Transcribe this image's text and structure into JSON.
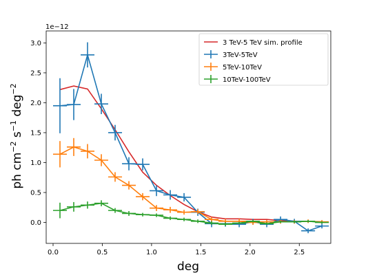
{
  "chart_data": {
    "type": "line",
    "xlabel": "deg",
    "ylabel_text": "ph cm",
    "ylabel_parts": [
      "ph cm",
      "−2",
      " s",
      "−1",
      " deg",
      "−2"
    ],
    "y_offset_label": "1e−12",
    "xlim": [
      -0.07,
      2.82
    ],
    "ylim": [
      -0.35,
      3.2
    ],
    "x_ticks": [
      0.0,
      0.5,
      1.0,
      1.5,
      2.0,
      2.5
    ],
    "x_tick_labels": [
      "0.0",
      "0.5",
      "1.0",
      "1.5",
      "2.0",
      "2.5"
    ],
    "y_ticks": [
      0.0,
      0.5,
      1.0,
      1.5,
      2.0,
      2.5,
      3.0
    ],
    "y_tick_labels": [
      "0.0",
      "0.5",
      "1.0",
      "1.5",
      "2.0",
      "2.5",
      "3.0"
    ],
    "legend_position": "top-right",
    "profile": {
      "name": "3 TeV-5 TeV sim. profile",
      "color": "#d62728",
      "x": [
        0.07,
        0.21,
        0.35,
        0.49,
        0.63,
        0.77,
        0.91,
        1.05,
        1.19,
        1.33,
        1.47,
        1.61,
        1.75,
        1.89,
        2.03,
        2.17,
        2.31,
        2.45,
        2.59,
        2.73
      ],
      "y": [
        2.22,
        2.28,
        2.23,
        1.9,
        1.55,
        1.18,
        0.84,
        0.62,
        0.45,
        0.3,
        0.18,
        0.09,
        0.06,
        0.06,
        0.05,
        0.05,
        0.03,
        0.02,
        0.02,
        0.01
      ]
    },
    "series": [
      {
        "name": "3TeV-5TeV",
        "color": "#1f77b4",
        "x": [
          0.07,
          0.21,
          0.35,
          0.49,
          0.63,
          0.77,
          0.91,
          1.05,
          1.19,
          1.33,
          1.47,
          1.61,
          1.75,
          1.89,
          2.03,
          2.17,
          2.31,
          2.45,
          2.59,
          2.73
        ],
        "y": [
          1.95,
          1.97,
          2.8,
          1.98,
          1.5,
          0.98,
          0.97,
          0.53,
          0.46,
          0.42,
          0.17,
          -0.02,
          -0.02,
          -0.03,
          0.01,
          -0.03,
          0.05,
          0.02,
          -0.14,
          -0.06
        ],
        "yerr": [
          0.46,
          0.26,
          0.21,
          0.17,
          0.13,
          0.11,
          0.1,
          0.09,
          0.08,
          0.07,
          0.06,
          0.06,
          0.05,
          0.05,
          0.05,
          0.05,
          0.05,
          0.04,
          0.04,
          0.04
        ]
      },
      {
        "name": "5TeV-10TeV",
        "color": "#ff7f0e",
        "x": [
          0.07,
          0.21,
          0.35,
          0.49,
          0.63,
          0.77,
          0.91,
          1.05,
          1.19,
          1.33,
          1.47,
          1.61,
          1.75,
          1.89,
          2.03,
          2.17,
          2.31,
          2.45,
          2.59,
          2.73
        ],
        "y": [
          1.14,
          1.26,
          1.19,
          1.04,
          0.76,
          0.62,
          0.43,
          0.24,
          0.21,
          0.17,
          0.18,
          0.05,
          0.02,
          0.02,
          0.0,
          0.01,
          0.01,
          0.01,
          0.02,
          0.01
        ],
        "yerr": [
          0.22,
          0.15,
          0.12,
          0.1,
          0.08,
          0.07,
          0.06,
          0.05,
          0.05,
          0.04,
          0.04,
          0.04,
          0.04,
          0.04,
          0.04,
          0.03,
          0.03,
          0.03,
          0.03,
          0.03
        ]
      },
      {
        "name": "10TeV-100TeV",
        "color": "#2ca02c",
        "x": [
          0.07,
          0.21,
          0.35,
          0.49,
          0.63,
          0.77,
          0.91,
          1.05,
          1.19,
          1.33,
          1.47,
          1.61,
          1.75,
          1.89,
          2.03,
          2.17,
          2.31,
          2.45,
          2.59,
          2.73
        ],
        "y": [
          0.2,
          0.26,
          0.29,
          0.32,
          0.2,
          0.15,
          0.13,
          0.12,
          0.07,
          0.05,
          0.02,
          -0.01,
          -0.03,
          -0.01,
          0.02,
          -0.02,
          0.01,
          0.01,
          0.02,
          0.0
        ],
        "yerr": [
          0.13,
          0.08,
          0.06,
          0.05,
          0.04,
          0.04,
          0.03,
          0.03,
          0.03,
          0.03,
          0.03,
          0.03,
          0.03,
          0.02,
          0.02,
          0.02,
          0.02,
          0.02,
          0.02,
          0.02
        ]
      }
    ]
  }
}
